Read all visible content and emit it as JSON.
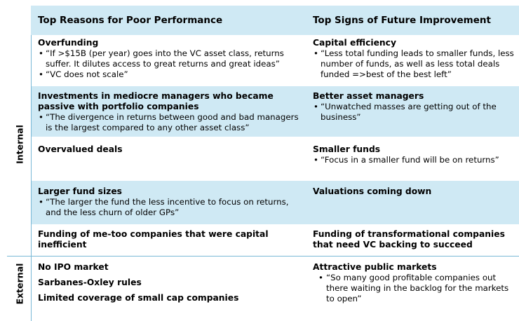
{
  "headers": {
    "left": "Top Reasons for Poor Performance",
    "right": "Top Signs of Future Improvement"
  },
  "labels": {
    "internal": "Internal",
    "external": "External"
  },
  "internal_rows": [
    {
      "left": {
        "titles": [
          "Overfunding"
        ],
        "bullets": [
          "“If >$15B (per year) goes into the VC asset class, returns suffer. It dilutes access to great returns and great ideas”",
          "“VC does not scale”"
        ]
      },
      "right": {
        "titles": [
          "Capital efficiency"
        ],
        "bullets": [
          "“Less total funding leads to smaller funds, less number of funds, as well as less total deals funded =>best of the best left”"
        ]
      }
    },
    {
      "left": {
        "titles": [
          "Investments in mediocre managers who became passive with portfolio companies"
        ],
        "bullets": [
          "“The divergence in returns between good and bad managers is the largest compared to any other asset class”"
        ]
      },
      "right": {
        "titles": [
          "Better asset managers"
        ],
        "bullets": [
          "“Unwatched masses are getting out of the business”"
        ]
      }
    },
    {
      "left": {
        "titles": [
          "Overvalued deals"
        ],
        "bullets": []
      },
      "right": {
        "titles": [
          "Smaller funds"
        ],
        "bullets": [
          "“Focus in a smaller fund will be on returns”"
        ]
      }
    },
    {
      "left": {
        "titles": [
          "Larger fund sizes"
        ],
        "bullets": [
          "“The larger the fund the less incentive to focus on returns, and the less churn of older GPs”"
        ]
      },
      "right": {
        "titles": [
          "Valuations coming down"
        ],
        "bullets": []
      }
    },
    {
      "left": {
        "titles": [
          "Funding of me-too companies that were capital inefficient"
        ],
        "bullets": []
      },
      "right": {
        "titles": [
          "Funding of transformational companies that need VC backing to succeed"
        ],
        "bullets": []
      }
    }
  ],
  "external_row": {
    "left": {
      "titles": [
        "No IPO market",
        "Sarbanes-Oxley rules",
        "Limited coverage of small cap companies"
      ],
      "bullets": []
    },
    "right": {
      "titles": [
        "Attractive public markets"
      ],
      "bullets": [
        "“So many good profitable companies out there waiting in the backlog for the markets to open”"
      ]
    }
  },
  "colors": {
    "band": "#cfe9f4",
    "divider": "#7ab9d6"
  }
}
